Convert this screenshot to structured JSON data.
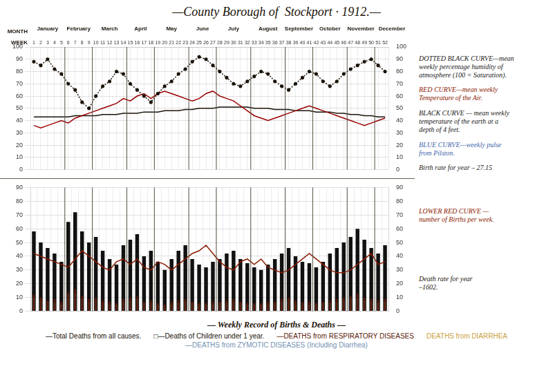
{
  "chart_data": [
    {
      "type": "line",
      "title": "—County Borough of  Stockport · 1912.—",
      "categories": [
        1,
        2,
        3,
        4,
        5,
        6,
        7,
        8,
        9,
        10,
        11,
        12,
        13,
        14,
        15,
        16,
        17,
        18,
        19,
        20,
        21,
        22,
        23,
        24,
        25,
        26,
        27,
        28,
        29,
        30,
        31,
        32,
        33,
        34,
        35,
        36,
        37,
        38,
        39,
        40,
        41,
        42,
        43,
        44,
        45,
        46,
        47,
        48,
        49,
        50,
        51,
        52
      ],
      "x_label": "WEEK",
      "x_group_label": "MONTH",
      "x_groups": [
        {
          "label": "January",
          "count": 5
        },
        {
          "label": "February",
          "count": 4
        },
        {
          "label": "March",
          "count": 5
        },
        {
          "label": "April",
          "count": 4
        },
        {
          "label": "May",
          "count": 5
        },
        {
          "label": "June",
          "count": 4
        },
        {
          "label": "July",
          "count": 5
        },
        {
          "label": "August",
          "count": 5
        },
        {
          "label": "September",
          "count": 4
        },
        {
          "label": "October",
          "count": 5
        },
        {
          "label": "November",
          "count": 4
        },
        {
          "label": "December",
          "count": 5
        }
      ],
      "ylim": [
        0,
        100
      ],
      "yticks": [
        0,
        10,
        20,
        30,
        40,
        50,
        60,
        70,
        80,
        90,
        100
      ],
      "y2lim": [
        0,
        100
      ],
      "y2ticks": [
        0,
        10,
        20,
        30,
        40,
        50,
        60,
        70,
        80,
        90,
        100
      ],
      "grid": true,
      "series": [
        {
          "color": "#1a1208",
          "line_style": "dotted",
          "marker": "point",
          "values": [
            88,
            85,
            90,
            82,
            78,
            70,
            65,
            55,
            50,
            60,
            68,
            72,
            80,
            78,
            70,
            65,
            60,
            55,
            62,
            68,
            72,
            78,
            82,
            88,
            92,
            90,
            85,
            80,
            75,
            70,
            68,
            72,
            76,
            80,
            78,
            72,
            68,
            65,
            70,
            75,
            80,
            78,
            72,
            68,
            72,
            78,
            82,
            85,
            88,
            90,
            85,
            80
          ]
        },
        {
          "color": "#990000",
          "line_style": "solid",
          "values": [
            36,
            34,
            36,
            38,
            40,
            38,
            42,
            44,
            46,
            48,
            50,
            52,
            54,
            58,
            56,
            60,
            62,
            58,
            62,
            64,
            62,
            60,
            58,
            56,
            58,
            62,
            64,
            60,
            58,
            56,
            52,
            48,
            44,
            42,
            40,
            42,
            44,
            46,
            48,
            50,
            52,
            50,
            48,
            46,
            44,
            42,
            40,
            38,
            36,
            38,
            40,
            42
          ]
        },
        {
          "color": "#1a1208",
          "line_style": "solid",
          "values": [
            43,
            43,
            43,
            43,
            43,
            43,
            44,
            44,
            44,
            44,
            45,
            45,
            45,
            46,
            46,
            46,
            47,
            47,
            47,
            48,
            48,
            48,
            49,
            49,
            50,
            50,
            50,
            51,
            51,
            51,
            51,
            51,
            50,
            50,
            50,
            49,
            49,
            49,
            48,
            48,
            48,
            47,
            47,
            47,
            46,
            46,
            45,
            45,
            44,
            44,
            43,
            43
          ]
        }
      ],
      "annotations": [
        {
          "text": "DOTTED BLACK CURVE—mean\nweekly percentage humidity of\natmosphere (100 = Saturation).",
          "color": "#1a1a1a"
        },
        {
          "text": "RED CURVE—mean weekly\nTemperature of the Air.",
          "color": "#8b1a00"
        },
        {
          "text": "BLACK CURVE — mean weekly\ntemperature of the earth at a\ndepth of 4 feet.",
          "color": "#1a1a1a"
        },
        {
          "text": "BLUE CURVE—weekly pulse\nfrom Pilston.",
          "color": "#4466aa"
        },
        {
          "text": "Birth rate for year – 27.15",
          "color": "#1a1a1a"
        }
      ]
    },
    {
      "type": "bar",
      "categories": [
        1,
        2,
        3,
        4,
        5,
        6,
        7,
        8,
        9,
        10,
        11,
        12,
        13,
        14,
        15,
        16,
        17,
        18,
        19,
        20,
        21,
        22,
        23,
        24,
        25,
        26,
        27,
        28,
        29,
        30,
        31,
        32,
        33,
        34,
        35,
        36,
        37,
        38,
        39,
        40,
        41,
        42,
        43,
        44,
        45,
        46,
        47,
        48,
        49,
        50,
        51,
        52
      ],
      "tick_labels": "y",
      "stacked": false,
      "ylim": [
        0,
        90
      ],
      "yticks": [
        0,
        10,
        20,
        30,
        40,
        50,
        60,
        70,
        80,
        90
      ],
      "y2lim": [
        0,
        90
      ],
      "y2ticks": [
        0,
        10,
        20,
        30,
        40,
        50,
        60,
        70,
        80,
        90
      ],
      "grid": true,
      "series": [
        {
          "type": "bar",
          "color": "#111111",
          "values": [
            58,
            50,
            46,
            42,
            36,
            65,
            72,
            58,
            50,
            54,
            44,
            38,
            34,
            48,
            52,
            56,
            40,
            44,
            36,
            30,
            38,
            44,
            48,
            38,
            34,
            32,
            36,
            38,
            42,
            44,
            38,
            35,
            32,
            30,
            34,
            38,
            42,
            46,
            40,
            36,
            35,
            32,
            36,
            42,
            46,
            50,
            54,
            60,
            52,
            46,
            42,
            48
          ]
        },
        {
          "type": "bar",
          "color": "#444444",
          "values": [
            10,
            8,
            7,
            6,
            5,
            12,
            13,
            9,
            7,
            8,
            6,
            5,
            5,
            7,
            8,
            9,
            6,
            6,
            5,
            4,
            5,
            6,
            7,
            6,
            5,
            5,
            5,
            6,
            6,
            7,
            6,
            5,
            5,
            5,
            5,
            6,
            7,
            8,
            6,
            6,
            5,
            5,
            6,
            6,
            7,
            8,
            9,
            10,
            8,
            7,
            6,
            7
          ]
        },
        {
          "type": "bar",
          "color": "#5a1a08",
          "values": [
            12,
            10,
            8,
            9,
            7,
            14,
            16,
            11,
            9,
            10,
            8,
            7,
            6,
            9,
            10,
            11,
            7,
            8,
            6,
            5,
            7,
            8,
            9,
            7,
            6,
            6,
            7,
            7,
            8,
            9,
            7,
            6,
            6,
            6,
            7,
            7,
            9,
            10,
            8,
            7,
            7,
            6,
            7,
            8,
            9,
            10,
            11,
            13,
            10,
            9,
            8,
            9
          ]
        },
        {
          "type": "line",
          "color": "#8b1a00",
          "line_style": "solid",
          "values": [
            42,
            40,
            38,
            36,
            34,
            32,
            38,
            44,
            40,
            36,
            32,
            30,
            36,
            38,
            34,
            38,
            32,
            30,
            36,
            34,
            30,
            34,
            38,
            42,
            44,
            48,
            42,
            36,
            32,
            30,
            36,
            38,
            34,
            38,
            32,
            30,
            28,
            30,
            34,
            38,
            42,
            38,
            34,
            30,
            28,
            28,
            30,
            34,
            38,
            42,
            34,
            36
          ]
        }
      ],
      "annotations": [
        {
          "text": "LOWER RED CURVE —\nnumber of Births per week.",
          "color": "#8b1a00"
        },
        {
          "text": "Death rate for year\n–1602.",
          "color": "#1a1208"
        }
      ],
      "notes_title": "— Weekly Record of Births & Deaths —",
      "notes": [
        {
          "text": "—Total Deaths from all causes.",
          "color": "#1a1208"
        },
        {
          "text": "□—Deaths of Children under 1 year.",
          "color": "#1a1208"
        },
        {
          "text": "—DEATHS from RESPIRATORY DISEASES",
          "color": "#5a1a08"
        },
        {
          "text": "DEATHS from DIARRHEA",
          "color": "#c8a040"
        },
        {
          "text": "—DEATHS from ZYMOTIC DISEASES (Including Diarrhea)",
          "color": "#7090b0"
        }
      ]
    }
  ]
}
